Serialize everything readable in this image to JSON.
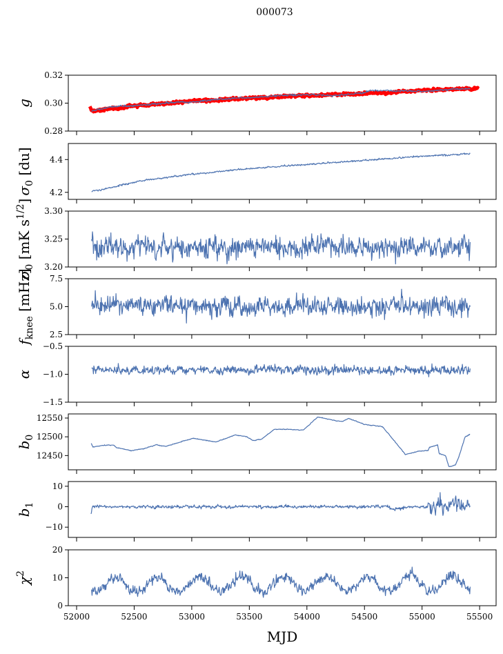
{
  "chart_data": {
    "type": "line",
    "title": "000073",
    "xlabel": "MJD",
    "xlim": [
      51928,
      55643
    ],
    "xticks": [
      52000,
      52500,
      53000,
      53500,
      54000,
      54500,
      55000,
      55500
    ],
    "xtick_labels": [
      "52000",
      "52500",
      "53000",
      "53500",
      "54000",
      "54500",
      "55000",
      "55500"
    ],
    "line_color": "#4c72b0",
    "fit_color": "#ff0000",
    "panels": [
      {
        "ylabel": "g",
        "ylabel_sub": "",
        "ylabel_unit": "",
        "ylim": [
          0.28,
          0.32
        ],
        "yticks": [
          0.28,
          0.3,
          0.32
        ],
        "ytick_labels": [
          "0.28",
          "0.30",
          "0.32"
        ],
        "series": [
          {
            "name": "fit",
            "color": "#ff0000",
            "width": 5,
            "noise": 0.0006,
            "x": [
              52115,
              52125,
              52140,
              52500,
              53000,
              53500,
              54000,
              54500,
              55000,
              55490
            ],
            "y": [
              0.2975,
              0.2945,
              0.2945,
              0.298,
              0.3015,
              0.3035,
              0.3055,
              0.307,
              0.309,
              0.3105
            ]
          },
          {
            "name": "g",
            "color": "#4c72b0",
            "width": 1.2,
            "noise": 0.0004,
            "x": [
              52130,
              52140,
              52300,
              52500,
              52900,
              53000,
              53250,
              53500,
              53900,
              54000,
              54250,
              54500,
              54550,
              55000,
              55200,
              55420
            ],
            "y": [
              0.2945,
              0.2945,
              0.2975,
              0.298,
              0.301,
              0.3005,
              0.303,
              0.304,
              0.306,
              0.306,
              0.3055,
              0.3075,
              0.309,
              0.3085,
              0.3095,
              0.3105
            ]
          }
        ]
      },
      {
        "ylabel": "σ",
        "ylabel_sub": "0",
        "ylabel_unit": " [du]",
        "ylim": [
          4.157,
          4.498
        ],
        "yticks": [
          4.2,
          4.4
        ],
        "ytick_labels": [
          "4.2",
          "4.4"
        ],
        "series": [
          {
            "name": "sigma0_du",
            "color": "#4c72b0",
            "width": 1.2,
            "noise": 0.003,
            "x": [
              52130,
              52300,
              52600,
              53000,
              53500,
              54000,
              54500,
              55000,
              55420
            ],
            "y": [
              4.205,
              4.23,
              4.275,
              4.31,
              4.345,
              4.37,
              4.395,
              4.42,
              4.435
            ]
          }
        ]
      },
      {
        "ylabel": "σ",
        "ylabel_sub": "0",
        "ylabel_unit": " [mK s",
        "ylabel_sup": "1/2",
        "ylabel_end": "]",
        "ylim": [
          3.2,
          3.3
        ],
        "yticks": [
          3.2,
          3.25,
          3.3
        ],
        "ytick_labels": [
          "3.20",
          "3.25",
          "3.30"
        ],
        "series": [
          {
            "name": "sigma0_mK",
            "color": "#4c72b0",
            "width": 1.2,
            "noise": 0.012,
            "x": [
              52130,
              55420
            ],
            "y": [
              3.235,
              3.235
            ]
          }
        ]
      },
      {
        "ylabel": "f",
        "ylabel_sub": "knee",
        "ylabel_unit": " [mHz]",
        "ylim": [
          2.5,
          7.5
        ],
        "yticks": [
          2.5,
          5.0,
          7.5
        ],
        "ytick_labels": [
          "2.5",
          "5.0",
          "7.5"
        ],
        "series": [
          {
            "name": "fknee",
            "color": "#4c72b0",
            "width": 1.2,
            "noise": 0.55,
            "x": [
              52130,
              55420
            ],
            "y": [
              5.2,
              4.9
            ]
          }
        ]
      },
      {
        "ylabel": "α",
        "ylabel_sub": "",
        "ylabel_unit": "",
        "ylim": [
          -1.5,
          -0.5
        ],
        "yticks": [
          -1.5,
          -1.0,
          -0.5
        ],
        "ytick_labels": [
          "−1.5",
          "−1.0",
          "−0.5"
        ],
        "series": [
          {
            "name": "alpha",
            "color": "#4c72b0",
            "width": 1.2,
            "noise": 0.05,
            "x": [
              52130,
              55420
            ],
            "y": [
              -0.93,
              -0.93
            ]
          }
        ]
      },
      {
        "ylabel": "b",
        "ylabel_sub": "0",
        "ylabel_unit": "",
        "ylim": [
          12412,
          12561
        ],
        "yticks": [
          12450,
          12500,
          12550
        ],
        "ytick_labels": [
          "12450",
          "12500",
          "12550"
        ],
        "series": [
          {
            "name": "b0",
            "color": "#4c72b0",
            "width": 1.2,
            "noise": 0.6,
            "x": [
              52127,
              52141,
              52253,
              52323,
              52351,
              52478,
              52591,
              52689,
              52773,
              52900,
              53012,
              53209,
              53378,
              53476,
              53533,
              53603,
              53715,
              53856,
              53968,
              54095,
              54250,
              54306,
              54362,
              54503,
              54657,
              54756,
              54854,
              54981,
              55051,
              55065,
              55135,
              55149,
              55205,
              55233,
              55290,
              55318,
              55374,
              55416
            ],
            "y": [
              12483,
              12473,
              12478,
              12478,
              12471,
              12463,
              12469,
              12479,
              12474,
              12486,
              12496,
              12486,
              12505,
              12500,
              12490,
              12493,
              12520,
              12520,
              12518,
              12553,
              12543,
              12541,
              12549,
              12533,
              12527,
              12490,
              12453,
              12462,
              12463,
              12472,
              12478,
              12455,
              12450,
              12420,
              12425,
              12445,
              12500,
              12507
            ]
          }
        ]
      },
      {
        "ylabel": "b",
        "ylabel_sub": "1",
        "ylabel_unit": "",
        "ylim": [
          -15,
          12.3
        ],
        "yticks": [
          -10,
          0,
          10
        ],
        "ytick_labels": [
          "−10",
          "0",
          "10"
        ],
        "series": [
          {
            "name": "b1",
            "color": "#4c72b0",
            "width": 1.2,
            "noise": 0.45,
            "burst": [
              55050,
              55420,
              4
            ],
            "x": [
              52125,
              52140,
              54700,
              54750,
              54900,
              55420
            ],
            "y": [
              -3.5,
              0,
              0,
              -1.5,
              0,
              0
            ]
          }
        ]
      },
      {
        "ylabel": "χ",
        "ylabel_sub": "",
        "ylabel_unit": "",
        "ylabel_sup": "2",
        "ylim": [
          0,
          20
        ],
        "yticks": [
          0,
          10,
          20
        ],
        "ytick_labels": [
          "0",
          "10",
          "20"
        ],
        "series": [
          {
            "name": "chi2",
            "color": "#4c72b0",
            "width": 1.2,
            "noise": 1.1,
            "period": 365,
            "amp": 2.8,
            "x": [
              52130,
              55420
            ],
            "y": [
              7.5,
              8
            ]
          }
        ]
      }
    ]
  }
}
